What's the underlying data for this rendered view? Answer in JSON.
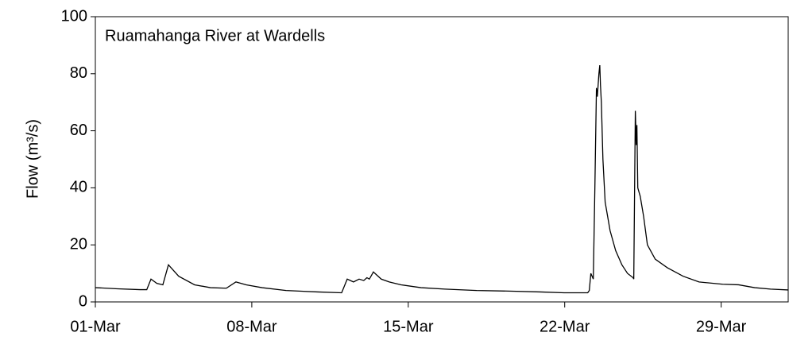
{
  "chart_data": {
    "type": "line",
    "annotation": "Ruamahanga River at Wardells",
    "y_label": "Flow (m³/s)",
    "color": "#000000",
    "x": [
      1,
      2,
      3,
      3.3,
      3.49,
      3.75,
      4.02,
      4.27,
      4.73,
      5.44,
      6.15,
      6.86,
      7.29,
      7.75,
      8.46,
      9.53,
      10.95,
      12.02,
      12.27,
      12.55,
      12.8,
      13.01,
      13.15,
      13.26,
      13.44,
      13.79,
      14.15,
      14.68,
      15.57,
      16.64,
      18.06,
      19.48,
      20.9,
      21.97,
      23.03,
      23.1,
      23.17,
      23.28,
      23.35,
      23.42,
      23.46,
      23.53,
      23.57,
      23.6,
      23.64,
      23.71,
      23.81,
      24.03,
      24.28,
      24.56,
      24.81,
      25.06,
      25.09,
      25.16,
      25.2,
      25.23,
      25.27,
      25.38,
      25.53,
      25.7,
      26.05,
      26.59,
      27.3,
      28.01,
      29.07,
      29.78,
      30.5,
      31.21,
      32
    ],
    "values": [
      5,
      4.6,
      4.3,
      4.3,
      8,
      6.5,
      6,
      13,
      9,
      6,
      5,
      4.8,
      7,
      6,
      5,
      4,
      3.5,
      3.2,
      8,
      7,
      8,
      7.5,
      8.5,
      8,
      10.5,
      8,
      7,
      6,
      5,
      4.5,
      4,
      3.8,
      3.5,
      3.2,
      3.2,
      4,
      10,
      8,
      40,
      75,
      72,
      80,
      83,
      76,
      70,
      50,
      35,
      25,
      18,
      13,
      10,
      8.5,
      8,
      67,
      55,
      62,
      40,
      37,
      30,
      20,
      15,
      12,
      9,
      7,
      6.2,
      6,
      5,
      4.5,
      4.2
    ],
    "xlim": [
      1,
      32
    ],
    "xticks": [
      {
        "value": 1,
        "label": "01-Mar"
      },
      {
        "value": 8,
        "label": "08-Mar"
      },
      {
        "value": 15,
        "label": "15-Mar"
      },
      {
        "value": 22,
        "label": "22-Mar"
      },
      {
        "value": 29,
        "label": "29-Mar"
      }
    ],
    "ylim": [
      0,
      100
    ],
    "yticks": [
      0,
      20,
      40,
      60,
      80,
      100
    ]
  }
}
